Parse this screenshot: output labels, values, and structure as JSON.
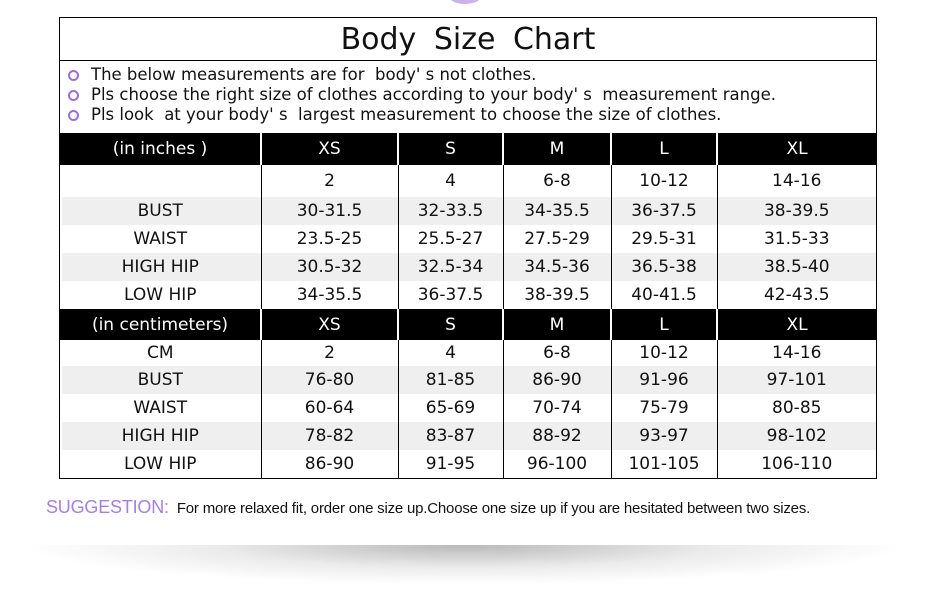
{
  "title": "Body Size Chart",
  "accent_color": "#a57ee8",
  "notes": [
    "The below measurements are for  body' s not clothes.",
    "Pls choose the right size of clothes according to your body' s  measurement range.",
    "Pls look  at your body' s  largest measurement to choose the size of clothes."
  ],
  "inches": {
    "header": [
      "(in  inches )",
      "XS",
      "S",
      "M",
      "L",
      "XL"
    ],
    "rows": [
      [
        "",
        "2",
        "4",
        "6-8",
        "10-12",
        "14-16"
      ],
      [
        "BUST",
        "30-31.5",
        "32-33.5",
        "34-35.5",
        "36-37.5",
        "38-39.5"
      ],
      [
        "WAIST",
        "23.5-25",
        "25.5-27",
        "27.5-29",
        "29.5-31",
        "31.5-33"
      ],
      [
        "HIGH HIP",
        "30.5-32",
        "32.5-34",
        "34.5-36",
        "36.5-38",
        "38.5-40"
      ],
      [
        "LOW HIP",
        "34-35.5",
        "36-37.5",
        "38-39.5",
        "40-41.5",
        "42-43.5"
      ]
    ]
  },
  "centimeters": {
    "header": [
      "(in centimeters)",
      "XS",
      "S",
      "M",
      "L",
      "XL"
    ],
    "rows": [
      [
        "CM",
        "2",
        "4",
        "6-8",
        "10-12",
        "14-16"
      ],
      [
        "BUST",
        "76-80",
        "81-85",
        "86-90",
        "91-96",
        "97-101"
      ],
      [
        "WAIST",
        "60-64",
        "65-69",
        "70-74",
        "75-79",
        "80-85"
      ],
      [
        "HIGH HIP",
        "78-82",
        "83-87",
        "88-92",
        "93-97",
        "98-102"
      ],
      [
        "LOW HIP",
        "86-90",
        "91-95",
        "96-100",
        "101-105",
        "106-110"
      ]
    ]
  },
  "suggestion": {
    "label": "SUGGESTION:",
    "text": "For more relaxed fit, order one size up.Choose one size up if you are hesitated between two sizes."
  }
}
